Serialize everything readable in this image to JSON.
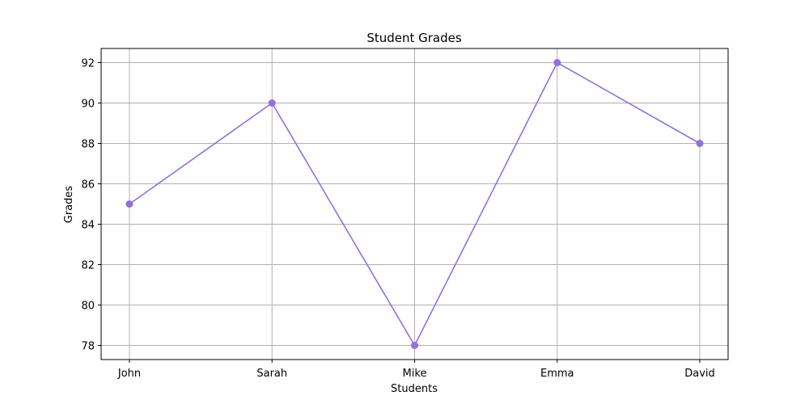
{
  "chart_data": {
    "type": "line",
    "title": "Student Grades",
    "xlabel": "Students",
    "ylabel": "Grades",
    "categories": [
      "John",
      "Sarah",
      "Mike",
      "Emma",
      "David"
    ],
    "series": [
      {
        "values": [
          85,
          90,
          78,
          92,
          88
        ],
        "color": "#9370DB",
        "marker": "circle"
      }
    ],
    "yticks": [
      78,
      80,
      82,
      84,
      86,
      88,
      90,
      92
    ],
    "ylim": [
      77.3,
      92.7
    ],
    "grid": true
  }
}
